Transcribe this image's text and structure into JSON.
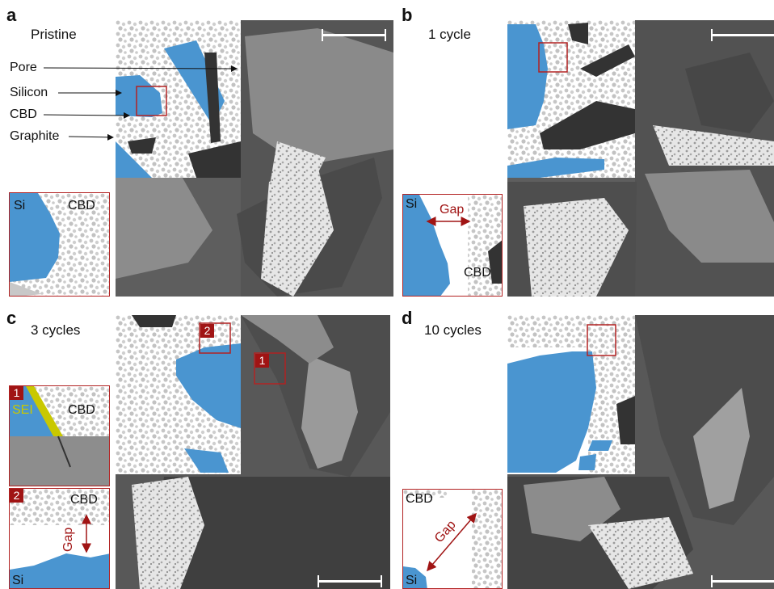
{
  "panel_a": {
    "letter": "a",
    "title": "Pristine",
    "labels": [
      "Pore",
      "Silicon",
      "CBD",
      "Graphite"
    ],
    "inset": {
      "si": "Si",
      "cbd": "CBD"
    }
  },
  "panel_b": {
    "letter": "b",
    "title": "1 cycle",
    "inset": {
      "si": "Si",
      "gap": "Gap",
      "cbd": "CBD"
    }
  },
  "panel_c": {
    "letter": "c",
    "title": "3 cycles",
    "marker_1": "1",
    "marker_2": "2",
    "inset_1": {
      "badge": "1",
      "sei": "SEI",
      "cbd": "CBD"
    },
    "inset_2": {
      "badge": "2",
      "cbd": "CBD",
      "gap": "Gap",
      "si": "Si"
    }
  },
  "panel_d": {
    "letter": "d",
    "title": "10 cycles",
    "inset": {
      "cbd": "CBD",
      "gap": "Gap",
      "si": "Si"
    }
  },
  "colors": {
    "silicon": "#4a95d0",
    "cbd": "#c8c8c8",
    "graphite": "#3a3a3a",
    "sem_bg": "#5d5d5d",
    "inset_border": "#b22222",
    "gap_annotation": "#a01414",
    "sei": "#c9c800"
  }
}
